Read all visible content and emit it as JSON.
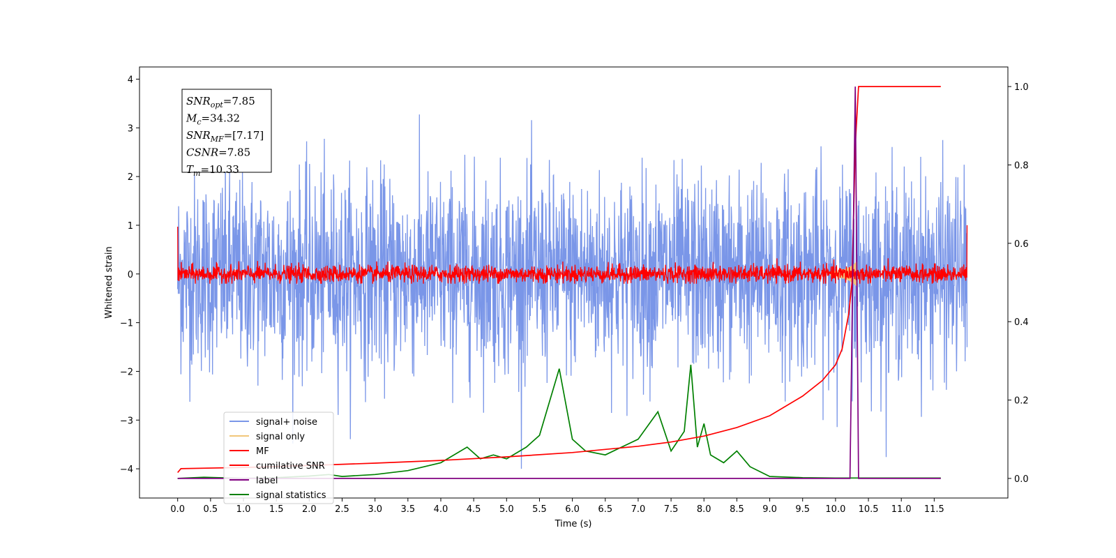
{
  "chart_data": {
    "type": "line",
    "xlabel": "Time (s)",
    "ylabel": "Whitened strain",
    "xlim": [
      -0.58,
      12.62
    ],
    "ylim_left": [
      -4.6,
      4.25
    ],
    "ylim_right": [
      -0.05,
      1.05
    ],
    "xticks": [
      0.0,
      0.5,
      1.0,
      1.5,
      2.0,
      2.5,
      3.0,
      3.5,
      4.0,
      4.5,
      5.0,
      5.5,
      6.0,
      6.5,
      7.0,
      7.5,
      8.0,
      8.5,
      9.0,
      9.5,
      10.0,
      10.5,
      11.0,
      11.5
    ],
    "xtick_labels": [
      "0.0",
      "0.5",
      "1.0",
      "1.5",
      "2.0",
      "2.5",
      "3.0",
      "3.5",
      "4.0",
      "4.5",
      "5.0",
      "5.5",
      "6.0",
      "6.5",
      "7.0",
      "7.5",
      "8.0",
      "8.5",
      "9.0",
      "9.5",
      "10.0",
      "10.5",
      "11.0",
      "11.5"
    ],
    "yticks_left": [
      4,
      3,
      2,
      1,
      0,
      -1,
      -2,
      -3,
      -4
    ],
    "ytick_labels_left": [
      "4",
      "3",
      "2",
      "1",
      "0",
      "−1",
      "−2",
      "−3",
      "−4"
    ],
    "yticks_right": [
      1.0,
      0.8,
      0.6,
      0.4,
      0.2,
      0.0
    ],
    "ytick_labels_right": [
      "1.0",
      "0.8",
      "0.6",
      "0.4",
      "0.2",
      "0.0"
    ],
    "legend_position": "lower-left",
    "series": [
      {
        "name": "signal+ noise",
        "color": "#7a96e8",
        "axis": "left",
        "description_noise_sigma": 1.0
      },
      {
        "name": "signal only",
        "color": "#f2c679",
        "axis": "left"
      },
      {
        "name": "MF",
        "color": "#ff0000",
        "axis": "left"
      },
      {
        "name": "cumilative SNR",
        "color": "#ff0000",
        "axis": "right",
        "x": [
          0.0,
          0.05,
          1.0,
          2.0,
          3.0,
          4.0,
          5.0,
          6.0,
          7.0,
          7.5,
          8.0,
          8.5,
          9.0,
          9.5,
          9.8,
          10.0,
          10.1,
          10.2,
          10.25,
          10.3,
          10.35,
          11.0,
          11.6
        ],
        "y": [
          0.015,
          0.025,
          0.028,
          0.033,
          0.039,
          0.046,
          0.055,
          0.066,
          0.082,
          0.093,
          0.108,
          0.13,
          0.16,
          0.21,
          0.25,
          0.29,
          0.33,
          0.42,
          0.5,
          0.85,
          1.0,
          1.0,
          1.0
        ]
      },
      {
        "name": "label",
        "color": "#800080",
        "axis": "right",
        "x": [
          0.0,
          10.22,
          10.3,
          10.35,
          11.6
        ],
        "y": [
          0.0,
          0.0,
          1.0,
          0.0,
          0.0
        ]
      },
      {
        "name": "signal statistics",
        "color": "#008000",
        "axis": "right",
        "x": [
          0.0,
          0.4,
          1.0,
          1.5,
          2.0,
          2.3,
          2.5,
          3.0,
          3.5,
          4.0,
          4.4,
          4.6,
          4.8,
          5.0,
          5.3,
          5.5,
          5.8,
          6.0,
          6.2,
          6.5,
          7.0,
          7.3,
          7.5,
          7.7,
          7.8,
          7.9,
          8.0,
          8.1,
          8.3,
          8.5,
          8.7,
          9.0,
          9.5,
          10.0,
          11.0,
          11.6
        ],
        "y": [
          0.0,
          0.003,
          0.0,
          0.002,
          0.006,
          0.01,
          0.005,
          0.01,
          0.02,
          0.04,
          0.08,
          0.05,
          0.06,
          0.05,
          0.08,
          0.11,
          0.28,
          0.1,
          0.07,
          0.06,
          0.1,
          0.17,
          0.07,
          0.12,
          0.29,
          0.08,
          0.14,
          0.06,
          0.04,
          0.07,
          0.03,
          0.005,
          0.002,
          0.001,
          0.001,
          0.001
        ]
      }
    ],
    "annotation": {
      "lines": [
        {
          "main": "SNR",
          "sub": "opt",
          "value": "=7.85"
        },
        {
          "main": "M",
          "sub": "c",
          "value": "=34.32"
        },
        {
          "main": "SNR",
          "sub": "MF",
          "value": "=[7.17]"
        },
        {
          "main": "CSNR",
          "sub": "",
          "value": "=7.85"
        },
        {
          "main": "T",
          "sub": "m",
          "value": "=10.33"
        }
      ]
    }
  }
}
